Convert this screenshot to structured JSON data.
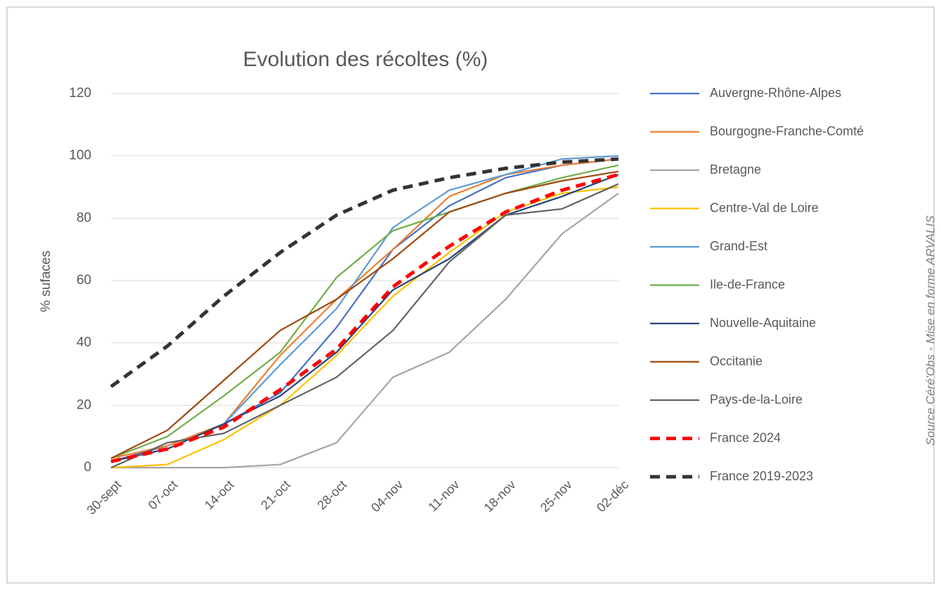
{
  "chart_data": {
    "type": "line",
    "title": "Evolution des récoltes (%)",
    "y_label": "% sufaces",
    "annotation": "Source Céré'Obs - Mise en forme ARVALIS",
    "categories": [
      "30-sept",
      "07-oct",
      "14-oct",
      "21-oct",
      "28-oct",
      "04-nov",
      "11-nov",
      "18-nov",
      "25-nov",
      "02-déc"
    ],
    "ylim": [
      0,
      120
    ],
    "yticks": [
      0,
      20,
      40,
      60,
      80,
      100,
      120
    ],
    "grid": true,
    "legend": "right",
    "series": [
      {
        "name": "Auvergne-Rhône-Alpes",
        "color": "#4472c4",
        "values": [
          2,
          7,
          14,
          24,
          45,
          70,
          84,
          93,
          97,
          99
        ]
      },
      {
        "name": "Bourgogne-Franche-Comté",
        "color": "#ed7d31",
        "values": [
          3,
          7,
          14,
          36,
          54,
          70,
          87,
          94,
          97,
          99
        ]
      },
      {
        "name": "Bretagne",
        "color": "#a5a5a5",
        "values": [
          0,
          0,
          0,
          1,
          8,
          29,
          37,
          54,
          75,
          88
        ]
      },
      {
        "name": "Centre-Val de Loire",
        "color": "#ffc000",
        "values": [
          0,
          1,
          9,
          20,
          36,
          55,
          69,
          82,
          88,
          90
        ]
      },
      {
        "name": "Grand-Est",
        "color": "#5b9bd5",
        "values": [
          2,
          6,
          14,
          33,
          51,
          77,
          89,
          94,
          99,
          100
        ]
      },
      {
        "name": "Ile-de-France",
        "color": "#70ad47",
        "values": [
          3,
          10,
          23,
          37,
          61,
          76,
          82,
          88,
          93,
          97
        ]
      },
      {
        "name": "Nouvelle-Aquitaine",
        "color": "#264478",
        "values": [
          2,
          6,
          14,
          23,
          37,
          57,
          67,
          81,
          87,
          94
        ]
      },
      {
        "name": "Occitanie",
        "color": "#9e480e",
        "values": [
          3,
          12,
          28,
          44,
          54,
          67,
          82,
          88,
          92,
          95
        ]
      },
      {
        "name": "Pays-de-la-Loire",
        "color": "#636363",
        "values": [
          0,
          8,
          11,
          20,
          29,
          44,
          66,
          81,
          83,
          91
        ]
      },
      {
        "name": "France 2024",
        "color": "#ff0000",
        "dashed": true,
        "values": [
          2,
          6,
          13,
          25,
          38,
          58,
          71,
          82,
          89,
          94
        ]
      },
      {
        "name": "France 2019-2023",
        "color": "#333333",
        "dashed": true,
        "values": [
          26,
          39,
          55,
          69,
          81,
          89,
          93,
          96,
          98,
          99
        ]
      }
    ]
  }
}
